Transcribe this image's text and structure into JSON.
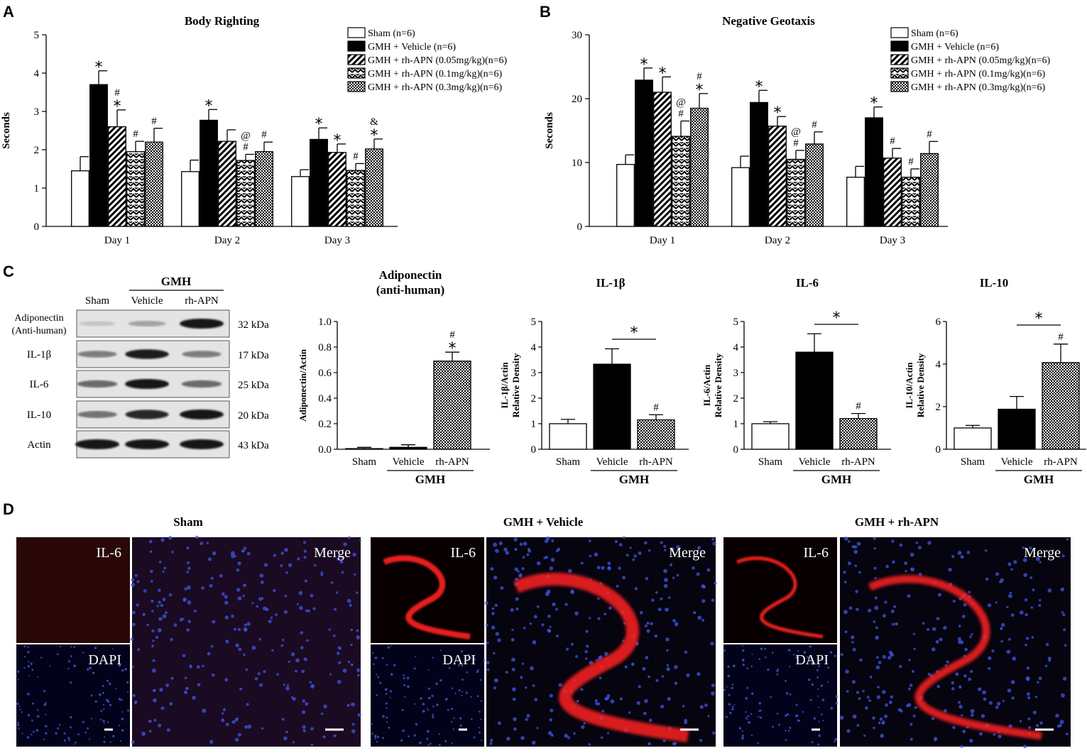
{
  "panel_letters": [
    "A",
    "B",
    "C",
    "D"
  ],
  "chart_data": [
    {
      "id": "A",
      "type": "bar",
      "title": "Body Righting",
      "ylabel": "Seconds",
      "ylim": [
        0,
        5
      ],
      "yticks": [
        0,
        1,
        2,
        3,
        4,
        5
      ],
      "categories": [
        "Day 1",
        "Day 2",
        "Day 3"
      ],
      "series": [
        {
          "name": "Sham (n=6)",
          "pattern": "white",
          "values": [
            1.45,
            1.43,
            1.3
          ],
          "errors": [
            0.37,
            0.3,
            0.18
          ],
          "marks": [
            "",
            "",
            ""
          ]
        },
        {
          "name": "GMH + Vehicle (n=6)",
          "pattern": "black",
          "values": [
            3.7,
            2.77,
            2.27
          ],
          "errors": [
            0.36,
            0.28,
            0.3
          ],
          "marks": [
            "*",
            "*",
            "*"
          ]
        },
        {
          "name": "GMH + rh-APN (0.05mg/kg)(n=6)",
          "pattern": "diag",
          "values": [
            2.6,
            2.22,
            1.93
          ],
          "errors": [
            0.44,
            0.3,
            0.22
          ],
          "marks": [
            "#\n*",
            "",
            "*"
          ]
        },
        {
          "name": "GMH + rh-APN (0.1mg/kg)(n=6)",
          "pattern": "zigzag",
          "values": [
            1.95,
            1.72,
            1.46
          ],
          "errors": [
            0.27,
            0.16,
            0.18
          ],
          "marks": [
            "#",
            "@\n#",
            "#"
          ]
        },
        {
          "name": "GMH + rh-APN (0.3mg/kg)(n=6)",
          "pattern": "check",
          "values": [
            2.2,
            1.95,
            2.02
          ],
          "errors": [
            0.36,
            0.25,
            0.26
          ],
          "marks": [
            "#",
            "#",
            "&\n*"
          ]
        }
      ]
    },
    {
      "id": "B",
      "type": "bar",
      "title": "Negative Geotaxis",
      "ylabel": "Seconds",
      "ylim": [
        0,
        30
      ],
      "yticks": [
        0,
        10,
        20,
        30
      ],
      "categories": [
        "Day 1",
        "Day 2",
        "Day 3"
      ],
      "series": [
        {
          "name": "Sham (n=6)",
          "pattern": "white",
          "values": [
            9.7,
            9.2,
            7.7
          ],
          "errors": [
            1.5,
            1.8,
            1.7
          ],
          "marks": [
            "",
            "",
            ""
          ]
        },
        {
          "name": "GMH + Vehicle (n=6)",
          "pattern": "black",
          "values": [
            22.9,
            19.4,
            17.0
          ],
          "errors": [
            1.9,
            1.9,
            1.7
          ],
          "marks": [
            "*",
            "*",
            "*"
          ]
        },
        {
          "name": "GMH + rh-APN (0.05mg/kg)(n=6)",
          "pattern": "diag",
          "values": [
            21.0,
            15.7,
            10.7
          ],
          "errors": [
            2.4,
            1.5,
            1.5
          ],
          "marks": [
            "*",
            "*",
            "#"
          ]
        },
        {
          "name": "GMH + rh-APN (0.1mg/kg)(n=6)",
          "pattern": "zigzag",
          "values": [
            14.1,
            10.5,
            7.7
          ],
          "errors": [
            2.4,
            1.4,
            1.3
          ],
          "marks": [
            "@\n#",
            "@\n#",
            "#"
          ]
        },
        {
          "name": "GMH + rh-APN (0.3mg/kg)(n=6)",
          "pattern": "check",
          "values": [
            18.5,
            12.9,
            11.4
          ],
          "errors": [
            2.3,
            1.9,
            1.9
          ],
          "marks": [
            "#\n*",
            "#",
            "#"
          ]
        }
      ]
    },
    {
      "id": "C1",
      "type": "bar",
      "title": "Adiponectin\n(anti-human)",
      "ylabel": "Adiponectin/Actin",
      "ylim": [
        0,
        1.0
      ],
      "yticks": [
        "0.0",
        "0.2",
        "0.4",
        "0.6",
        "0.8",
        "1.0"
      ],
      "categories": [
        "Sham",
        "Vehicle",
        "rh-APN"
      ],
      "group_label": "GMH",
      "patterns": [
        "white",
        "black",
        "check"
      ],
      "values": [
        0.005,
        0.015,
        0.69
      ],
      "errors": [
        0.01,
        0.02,
        0.07
      ],
      "marks": [
        "",
        "",
        "#\n*"
      ],
      "bracket": ""
    },
    {
      "id": "C2",
      "type": "bar",
      "title": "IL-1β",
      "ylabel": "IL-1β/Actin\nRelative Density",
      "ylim": [
        0,
        5
      ],
      "yticks": [
        "0",
        "1",
        "2",
        "3",
        "4",
        "5"
      ],
      "categories": [
        "Sham",
        "Vehicle",
        "rh-APN"
      ],
      "group_label": "GMH",
      "patterns": [
        "white",
        "black",
        "check"
      ],
      "values": [
        1.0,
        3.33,
        1.15
      ],
      "errors": [
        0.17,
        0.6,
        0.2
      ],
      "marks": [
        "",
        "",
        "#"
      ],
      "bracket": "*"
    },
    {
      "id": "C3",
      "type": "bar",
      "title": "IL-6",
      "ylabel": "IL-6/Actin\nRelative Density",
      "ylim": [
        0,
        5
      ],
      "yticks": [
        "0",
        "1",
        "2",
        "3",
        "4",
        "5"
      ],
      "categories": [
        "Sham",
        "Vehicle",
        "rh-APN"
      ],
      "group_label": "GMH",
      "patterns": [
        "white",
        "black",
        "check"
      ],
      "values": [
        1.0,
        3.8,
        1.2
      ],
      "errors": [
        0.08,
        0.72,
        0.2
      ],
      "marks": [
        "",
        "",
        "#"
      ],
      "bracket": "*"
    },
    {
      "id": "C4",
      "type": "bar",
      "title": "IL-10",
      "ylabel": "IL-10/Actin\nRelative Density",
      "ylim": [
        0,
        6
      ],
      "yticks": [
        "0",
        "2",
        "4",
        "6"
      ],
      "categories": [
        "Sham",
        "Vehicle",
        "rh-APN"
      ],
      "group_label": "GMH",
      "patterns": [
        "white",
        "black",
        "check"
      ],
      "values": [
        1.0,
        1.88,
        4.07
      ],
      "errors": [
        0.12,
        0.6,
        0.87
      ],
      "marks": [
        "",
        "",
        "#"
      ],
      "bracket": "*"
    }
  ],
  "western_blot": {
    "group_label": "GMH",
    "columns": [
      "Sham",
      "Vehicle",
      "rh-APN"
    ],
    "rows": [
      {
        "label": "Adiponectin\n(Anti-human)",
        "kda": "32 kDa",
        "intensity": [
          0.08,
          0.25,
          1.0
        ]
      },
      {
        "label": "IL-1β",
        "kda": "17 kDa",
        "intensity": [
          0.45,
          0.95,
          0.45
        ]
      },
      {
        "label": "IL-6",
        "kda": "25 kDa",
        "intensity": [
          0.55,
          1.0,
          0.55
        ]
      },
      {
        "label": "IL-10",
        "kda": "20 kDa",
        "intensity": [
          0.5,
          0.9,
          1.0
        ]
      },
      {
        "label": "Actin",
        "kda": "43 kDa",
        "intensity": [
          1.0,
          1.0,
          1.0
        ]
      }
    ]
  },
  "microscopy": {
    "groups": [
      {
        "title": "Sham",
        "labels": [
          "IL-6",
          "DAPI",
          "Merge"
        ],
        "red_level": 0.05
      },
      {
        "title": "GMH + Vehicle",
        "labels": [
          "IL-6",
          "DAPI",
          "Merge"
        ],
        "red_level": 1.0
      },
      {
        "title": "GMH + rh-APN",
        "labels": [
          "IL-6",
          "DAPI",
          "Merge"
        ],
        "red_level": 0.45
      }
    ]
  },
  "colors": {
    "black": "#000000",
    "red_stain": "#ff2222",
    "dapi_blue": "#3344cc",
    "background": "#ffffff"
  }
}
